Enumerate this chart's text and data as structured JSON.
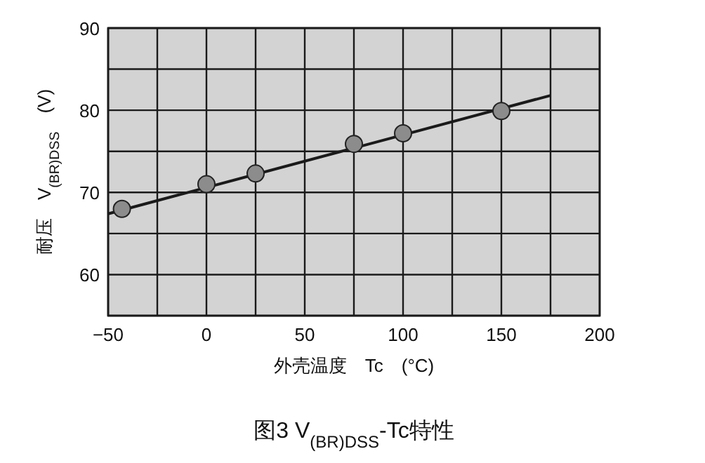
{
  "chart_data": {
    "type": "line",
    "title": "图3 V$_{(BR)DSS}$-Tc特性",
    "xlabel": "外壳温度　Tc　(°C)",
    "ylabel": "耐压　V$_{(BR)DSS}$　(V)",
    "xlim": [
      -50,
      200
    ],
    "ylim": [
      55,
      90
    ],
    "xticks": [
      -50,
      {
        "value": -25,
        "label": null
      },
      0,
      {
        "value": 25,
        "label": null
      },
      50,
      {
        "value": 75,
        "label": null
      },
      100,
      {
        "value": 125,
        "label": null
      },
      150,
      {
        "value": 175,
        "label": null
      },
      200
    ],
    "yticks": [
      {
        "value": 55,
        "label": null
      },
      60,
      {
        "value": 65,
        "label": null
      },
      70,
      {
        "value": 75,
        "label": null
      },
      80,
      {
        "value": 85,
        "label": null
      },
      90
    ],
    "grid": true,
    "series": [
      {
        "color": "#1a1a1a",
        "x": [
          -50,
          175
        ],
        "values": [
          67.4,
          81.8
        ]
      },
      {
        "type": "scatter",
        "marker": "circle",
        "color": "#8c8c8c",
        "x": [
          -43,
          0,
          25,
          75,
          100,
          150
        ],
        "values": [
          68.0,
          71.0,
          72.3,
          75.9,
          77.2,
          79.9
        ]
      }
    ]
  }
}
